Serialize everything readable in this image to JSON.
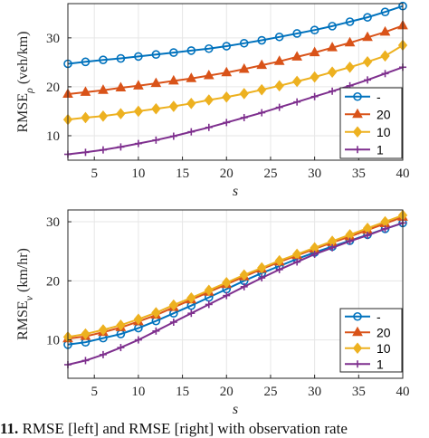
{
  "caption": {
    "number": "11.",
    "text": "RMSE [left] and RMSE [right] with observation rate"
  },
  "chart_data": [
    {
      "type": "line",
      "xlabel": "s",
      "ylabel": "RMSE",
      "ylabel_subscript": "ρ",
      "ylabel_unit": "(veh/km)",
      "xlim": [
        2,
        40
      ],
      "ylim": [
        5,
        37
      ],
      "xticks": [
        5,
        10,
        15,
        20,
        25,
        30,
        35,
        40
      ],
      "yticks": [
        10,
        20,
        30
      ],
      "grid": true,
      "legend_position": "bottom-right",
      "x": [
        2,
        4,
        6,
        8,
        10,
        12,
        14,
        16,
        18,
        20,
        22,
        24,
        26,
        28,
        30,
        32,
        34,
        36,
        38,
        40
      ],
      "series": [
        {
          "name": "-",
          "color": "#0072BD",
          "marker": "circle",
          "values": [
            24.7,
            25.1,
            25.5,
            25.8,
            26.2,
            26.6,
            27.0,
            27.4,
            27.8,
            28.3,
            28.9,
            29.5,
            30.2,
            30.9,
            31.6,
            32.4,
            33.3,
            34.2,
            35.3,
            36.5
          ]
        },
        {
          "name": "20",
          "color": "#D95319",
          "marker": "triangle",
          "values": [
            18.5,
            18.9,
            19.3,
            19.8,
            20.2,
            20.7,
            21.2,
            21.7,
            22.3,
            22.9,
            23.6,
            24.4,
            25.2,
            26.1,
            27.0,
            28.0,
            29.0,
            30.1,
            31.2,
            32.5
          ]
        },
        {
          "name": "10",
          "color": "#EDB120",
          "marker": "diamond",
          "values": [
            13.3,
            13.7,
            14.0,
            14.5,
            15.0,
            15.5,
            16.0,
            16.6,
            17.3,
            17.9,
            18.6,
            19.4,
            20.2,
            21.1,
            22.0,
            23.0,
            24.0,
            25.1,
            26.3,
            28.5
          ]
        },
        {
          "name": "1",
          "color": "#7E2F8E",
          "marker": "plus",
          "values": [
            6.2,
            6.6,
            7.1,
            7.7,
            8.4,
            9.1,
            9.9,
            10.8,
            11.7,
            12.7,
            13.7,
            14.7,
            15.8,
            16.9,
            18.0,
            19.1,
            20.2,
            21.4,
            22.7,
            24.0
          ]
        }
      ]
    },
    {
      "type": "line",
      "xlabel": "s",
      "ylabel": "RMSE",
      "ylabel_subscript": "v",
      "ylabel_unit": "(km/hr)",
      "xlim": [
        2,
        40
      ],
      "ylim": [
        3.5,
        32
      ],
      "xticks": [
        5,
        10,
        15,
        20,
        25,
        30,
        35,
        40
      ],
      "yticks": [
        10,
        20,
        30
      ],
      "grid": true,
      "legend_position": "bottom-right",
      "x": [
        2,
        4,
        6,
        8,
        10,
        12,
        14,
        16,
        18,
        20,
        22,
        24,
        26,
        28,
        30,
        32,
        34,
        36,
        38,
        40
      ],
      "series": [
        {
          "name": "-",
          "color": "#0072BD",
          "marker": "circle",
          "values": [
            9.2,
            9.6,
            10.3,
            11.0,
            12.0,
            13.2,
            14.5,
            15.8,
            17.2,
            18.6,
            20.0,
            21.3,
            22.5,
            23.7,
            24.8,
            25.8,
            26.8,
            27.8,
            28.8,
            29.8
          ]
        },
        {
          "name": "20",
          "color": "#D95319",
          "marker": "triangle",
          "values": [
            10.2,
            10.6,
            11.3,
            12.1,
            13.1,
            14.2,
            15.5,
            16.8,
            18.1,
            19.4,
            20.7,
            22.0,
            23.2,
            24.3,
            25.4,
            26.5,
            27.5,
            28.6,
            29.7,
            30.8
          ]
        },
        {
          "name": "10",
          "color": "#EDB120",
          "marker": "diamond",
          "values": [
            10.5,
            11.0,
            11.7,
            12.5,
            13.5,
            14.6,
            15.9,
            17.1,
            18.4,
            19.7,
            21.0,
            22.2,
            23.4,
            24.5,
            25.6,
            26.7,
            27.8,
            28.9,
            30.0,
            31.1
          ]
        },
        {
          "name": "1",
          "color": "#7E2F8E",
          "marker": "plus",
          "values": [
            5.8,
            6.5,
            7.5,
            8.7,
            10.0,
            11.5,
            13.0,
            14.5,
            16.0,
            17.5,
            19.0,
            20.5,
            21.9,
            23.2,
            24.5,
            25.6,
            26.7,
            27.7,
            28.8,
            29.8
          ]
        }
      ]
    }
  ]
}
